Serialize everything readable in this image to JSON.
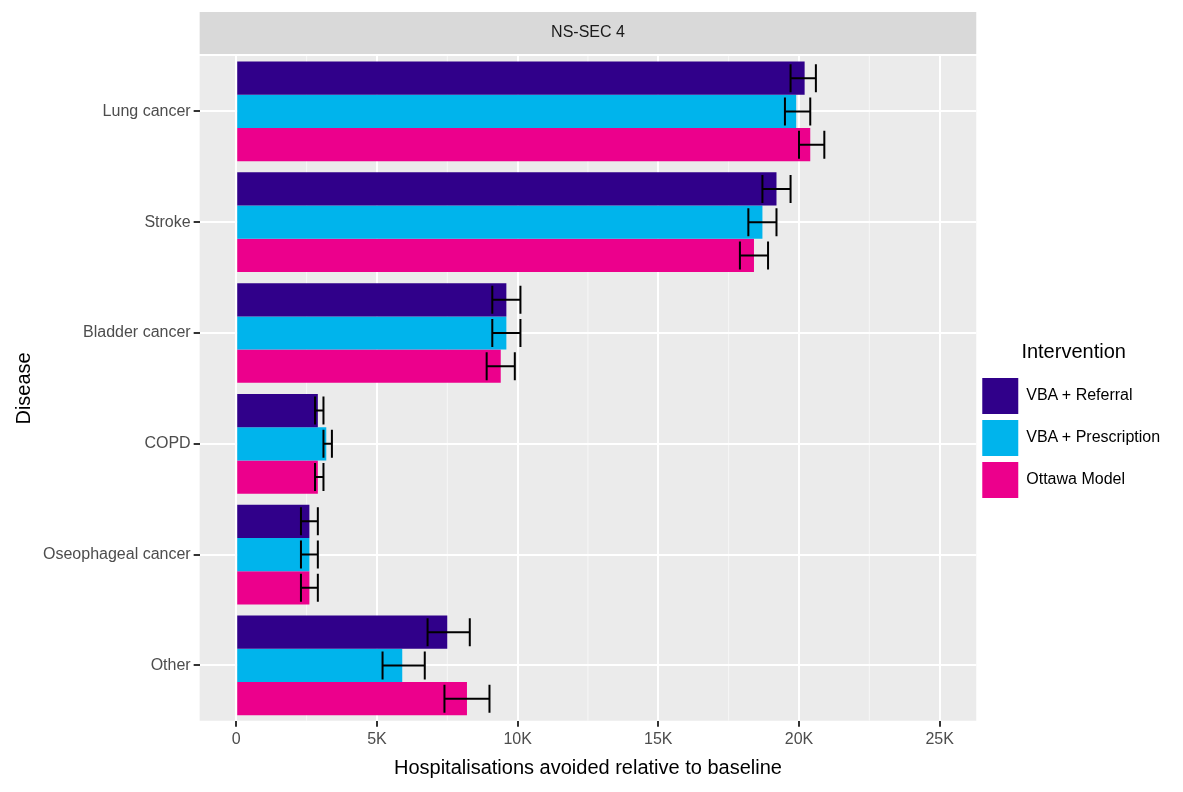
{
  "chart_data": {
    "type": "bar",
    "orientation": "horizontal",
    "title": "NS-SEC 4",
    "xlabel": "Hospitalisations avoided relative to baseline",
    "ylabel": "Disease",
    "legend_title": "Intervention",
    "legend": "right",
    "grid": true,
    "categories": [
      "Lung cancer",
      "Stroke",
      "Bladder cancer",
      "COPD",
      "Oseophageal cancer",
      "Other"
    ],
    "xlim": [
      -1300,
      26300
    ],
    "xticks": [
      {
        "value": 0,
        "label": "0"
      },
      {
        "value": 5000,
        "label": "5K"
      },
      {
        "value": 10000,
        "label": "10K"
      },
      {
        "value": 15000,
        "label": "15K"
      },
      {
        "value": 20000,
        "label": "20K"
      },
      {
        "value": 25000,
        "label": "25K"
      }
    ],
    "series": [
      {
        "name": "VBA + Referral",
        "color": "#30008a",
        "values": [
          20200,
          19200,
          9600,
          2900,
          2600,
          7500
        ],
        "errors": [
          [
            19700,
            20600
          ],
          [
            18700,
            19700
          ],
          [
            9100,
            10100
          ],
          [
            2800,
            3100
          ],
          [
            2300,
            2900
          ],
          [
            6800,
            8300
          ]
        ]
      },
      {
        "name": "VBA + Prescription",
        "color": "#00b4ec",
        "values": [
          19900,
          18700,
          9600,
          3200,
          2600,
          5900
        ],
        "errors": [
          [
            19500,
            20400
          ],
          [
            18200,
            19200
          ],
          [
            9100,
            10100
          ],
          [
            3100,
            3400
          ],
          [
            2300,
            2900
          ],
          [
            5200,
            6700
          ]
        ]
      },
      {
        "name": "Ottawa Model",
        "color": "#ec008c",
        "values": [
          20400,
          18400,
          9400,
          2900,
          2600,
          8200
        ],
        "errors": [
          [
            20000,
            20900
          ],
          [
            17900,
            18900
          ],
          [
            8900,
            9900
          ],
          [
            2800,
            3100
          ],
          [
            2300,
            2900
          ],
          [
            7400,
            9000
          ]
        ]
      }
    ]
  }
}
